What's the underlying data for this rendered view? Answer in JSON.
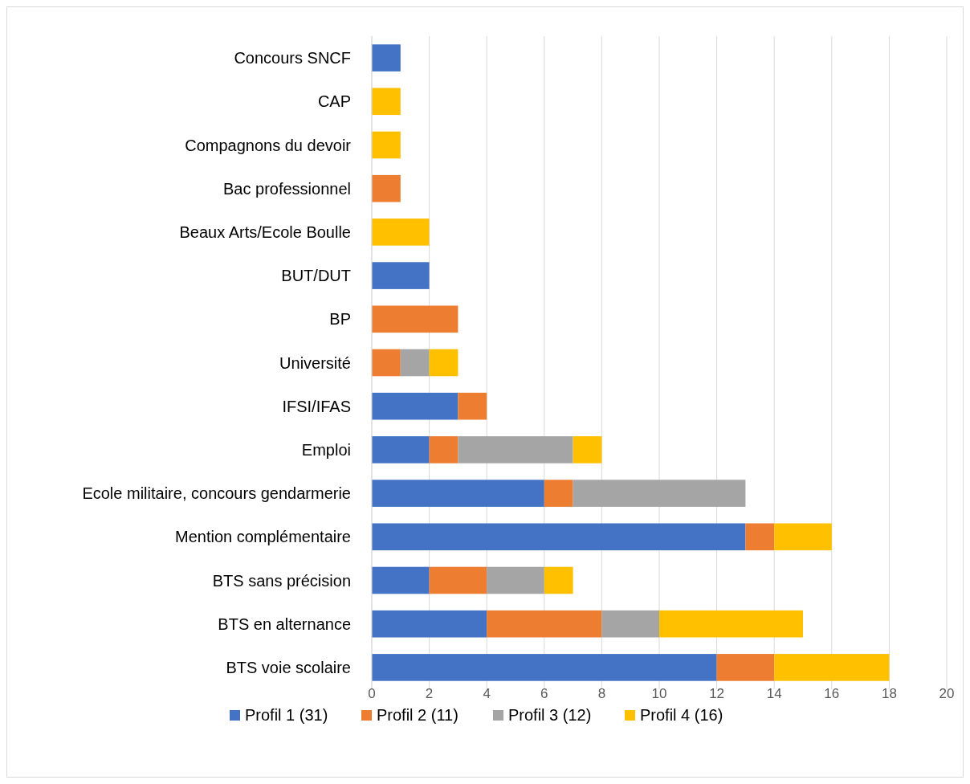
{
  "chart_data": {
    "type": "bar",
    "orientation": "horizontal",
    "stacked": true,
    "categories": [
      "Concours SNCF",
      "CAP",
      "Compagnons du devoir",
      "Bac professionnel",
      "Beaux Arts/Ecole Boulle",
      "BUT/DUT",
      "BP",
      "Université",
      "IFSI/IFAS",
      "Emploi",
      "Ecole militaire, concours gendarmerie",
      "Mention complémentaire",
      "BTS sans précision",
      "BTS en alternance",
      "BTS voie scolaire"
    ],
    "series": [
      {
        "name": "Profil 1 (31)",
        "color": "#4472c4",
        "values": [
          1,
          null,
          null,
          null,
          null,
          2,
          null,
          null,
          3,
          2,
          6,
          13,
          2,
          4,
          12
        ]
      },
      {
        "name": "Profil 2 (11)",
        "color": "#ed7d31",
        "values": [
          null,
          null,
          null,
          1,
          null,
          null,
          3,
          1,
          1,
          1,
          1,
          1,
          2,
          4,
          2
        ]
      },
      {
        "name": "Profil 3 (12)",
        "color": "#a5a5a5",
        "values": [
          null,
          null,
          null,
          null,
          null,
          null,
          null,
          1,
          null,
          4,
          6,
          null,
          2,
          2,
          null
        ]
      },
      {
        "name": "Profil 4 (16)",
        "color": "#ffc000",
        "values": [
          null,
          1,
          1,
          null,
          2,
          null,
          null,
          1,
          null,
          1,
          null,
          2,
          1,
          5,
          4
        ]
      }
    ],
    "xlim": [
      0,
      20
    ],
    "xticks": [
      0,
      2,
      4,
      6,
      8,
      10,
      12,
      14,
      16,
      18,
      20
    ],
    "grid": "x",
    "legend": "bottom"
  }
}
